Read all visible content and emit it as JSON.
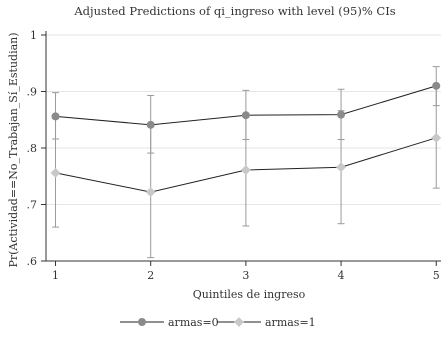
{
  "chart_data": {
    "type": "line",
    "title": "Adjusted Predictions of qi_ingreso with level (95)% CIs",
    "xlabel": "Quintiles de ingreso",
    "ylabel": "Pr(Actividad==No_Trabajan_Sí_Estudian)",
    "x": [
      1,
      2,
      3,
      4,
      5
    ],
    "x_tick_labels": [
      "1",
      "2",
      "3",
      "4",
      "5"
    ],
    "xlim": [
      0.9,
      5.05
    ],
    "ylim": [
      0.6,
      1.0
    ],
    "y_ticks": [
      0.6,
      0.7,
      0.8,
      0.9,
      1.0
    ],
    "y_tick_labels": [
      ".6",
      ".7",
      ".8",
      ".9",
      "1"
    ],
    "grid": "horizontal",
    "legend_position": "bottom",
    "series": [
      {
        "name": "armas=0",
        "values": [
          0.856,
          0.841,
          0.858,
          0.859,
          0.91
        ],
        "ci_low": [
          0.816,
          0.791,
          0.815,
          0.815,
          0.875
        ],
        "ci_high": [
          0.898,
          0.893,
          0.902,
          0.904,
          0.944
        ],
        "color": "#8a8a8a",
        "marker": "circle"
      },
      {
        "name": "armas=1",
        "values": [
          0.756,
          0.722,
          0.761,
          0.766,
          0.818
        ],
        "ci_low": [
          0.66,
          0.606,
          0.662,
          0.666,
          0.729
        ],
        "ci_high": [
          0.852,
          0.838,
          0.86,
          0.866,
          0.907
        ],
        "color": "#c8c8c8",
        "marker": "diamond"
      }
    ]
  }
}
